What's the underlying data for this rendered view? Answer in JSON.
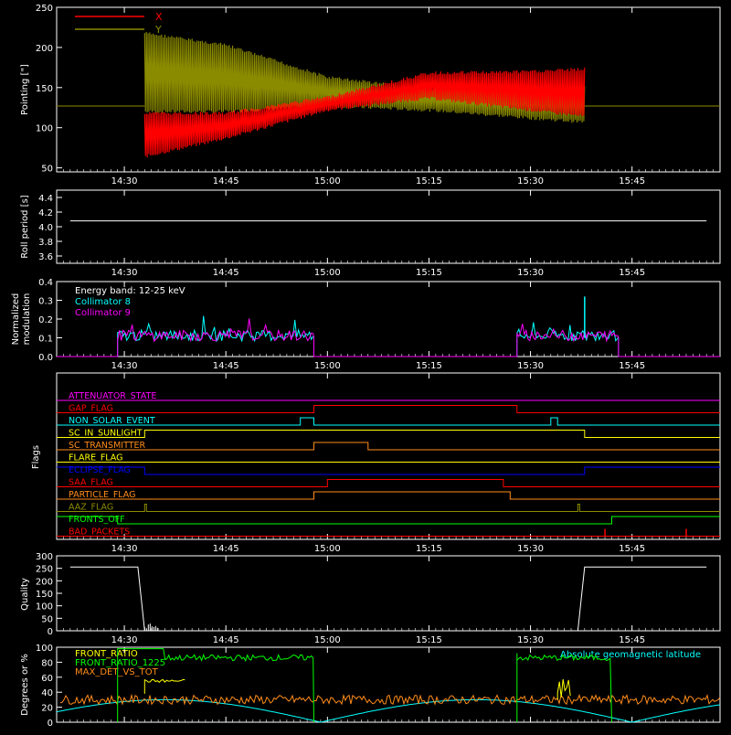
{
  "time_ticks": [
    "14:30",
    "14:45",
    "15:00",
    "15:15",
    "15:30",
    "15:45"
  ],
  "colors": {
    "background": "#000000",
    "axis": "#ffffff",
    "red": "#ff0000",
    "olive": "#8b8b00",
    "cyan": "#00ffff",
    "magenta": "#ff00ff",
    "yellow": "#ffff00",
    "green": "#00ff00",
    "orange": "#ff8c1a",
    "blue": "#0000ff",
    "white": "#ffffff"
  },
  "chart_data": [
    {
      "id": "pointing",
      "type": "line",
      "ylabel": "Pointing [\"]",
      "ylim": [
        45,
        250
      ],
      "yticks": [
        50,
        100,
        150,
        200,
        250
      ],
      "legend": [
        {
          "label": "X",
          "color": "#ff0000"
        },
        {
          "label": "Y",
          "color": "#8b8b00"
        }
      ],
      "series": [
        {
          "name": "X",
          "color": "#ff0000",
          "envelope": [
            {
              "t": "14:33",
              "min": 62,
              "max": 120
            },
            {
              "t": "14:45",
              "min": 85,
              "max": 120
            },
            {
              "t": "15:00",
              "min": 120,
              "max": 140
            },
            {
              "t": "15:15",
              "min": 135,
              "max": 170
            },
            {
              "t": "15:30",
              "min": 120,
              "max": 172
            },
            {
              "t": "15:38",
              "min": 112,
              "max": 175
            }
          ]
        },
        {
          "name": "Y",
          "color": "#8b8b00",
          "envelope": [
            {
              "t": "14:33",
              "min": 118,
              "max": 220
            },
            {
              "t": "14:45",
              "min": 118,
              "max": 205
            },
            {
              "t": "15:00",
              "min": 125,
              "max": 165
            },
            {
              "t": "15:15",
              "min": 120,
              "max": 150
            },
            {
              "t": "15:30",
              "min": 110,
              "max": 152
            },
            {
              "t": "15:38",
              "min": 105,
              "max": 155
            }
          ],
          "baseline": 127
        }
      ]
    },
    {
      "id": "roll",
      "type": "line",
      "ylabel": "Roll period [s]",
      "ylim": [
        3.5,
        4.5
      ],
      "yticks": [
        "3.6",
        "3.8",
        "4.0",
        "4.2",
        "4.4"
      ],
      "series": [
        {
          "name": "",
          "color": "#ffffff",
          "x": [
            "14:22",
            "15:56"
          ],
          "y": [
            4.08,
            4.08
          ]
        }
      ]
    },
    {
      "id": "modulation",
      "type": "line",
      "ylabel": "Normalized modulation",
      "ylim": [
        0,
        0.4
      ],
      "yticks": [
        "0.0",
        "0.1",
        "0.2",
        "0.3",
        "0.4"
      ],
      "annotation": "Energy band: 12-25 keV",
      "series": [
        {
          "name": "Collimator 8",
          "color": "#00ffff",
          "segments": [
            [
              "14:29",
              "14:58"
            ],
            [
              "15:28",
              "15:43"
            ]
          ],
          "level": 0.1,
          "peak": 0.32
        },
        {
          "name": "Collimator 9",
          "color": "#ff00ff",
          "segments": [
            [
              "14:29",
              "14:58"
            ],
            [
              "15:28",
              "15:43"
            ]
          ],
          "level": 0.1,
          "peak": 0.18
        }
      ]
    },
    {
      "id": "flags",
      "type": "line",
      "ylabel": "Flags",
      "series": [
        {
          "name": "ATTENUATOR_STATE",
          "color": "#ff00ff",
          "level": 0,
          "high": []
        },
        {
          "name": "GAP_FLAG",
          "color": "#ff0000",
          "level": 0,
          "high": [
            [
              "14:58",
              "15:28"
            ]
          ]
        },
        {
          "name": "NON_SOLAR_EVENT",
          "color": "#00ffff",
          "level": 0,
          "high": [
            [
              "14:56",
              "14:58"
            ],
            [
              "15:33",
              "15:34"
            ]
          ]
        },
        {
          "name": "SC_IN_SUNLIGHT",
          "color": "#ffff00",
          "level": 0,
          "high": [
            [
              "14:33",
              "15:38"
            ]
          ]
        },
        {
          "name": "SC_TRANSMITTER",
          "color": "#ff8c1a",
          "level": 0,
          "high": [
            [
              "14:58",
              "15:06"
            ]
          ]
        },
        {
          "name": "FLARE_FLAG",
          "color": "#ffff00",
          "level": 0,
          "high": []
        },
        {
          "name": "ECLIPSE_FLAG",
          "color": "#0000ff",
          "level": 1,
          "high": [
            [
              "14:33",
              "15:38"
            ]
          ],
          "inverted": true
        },
        {
          "name": "SAA_FLAG",
          "color": "#ff0000",
          "level": 0,
          "high": [
            [
              "15:00",
              "15:26"
            ]
          ]
        },
        {
          "name": "PARTICLE_FLAG",
          "color": "#ff8c1a",
          "level": 0,
          "high": [
            [
              "14:58",
              "15:27"
            ]
          ]
        },
        {
          "name": "AAZ_FLAG",
          "color": "#8b8b00",
          "level": 0,
          "high": [
            [
              "14:33",
              "14:33"
            ],
            [
              "15:37",
              "15:37"
            ]
          ]
        },
        {
          "name": "FRONTS_OFF",
          "color": "#00ff00",
          "level": 1,
          "high": [
            [
              "14:29",
              "15:42"
            ]
          ],
          "inverted": true
        },
        {
          "name": "BAD_PACKETS",
          "color": "#ff0000",
          "level": 0,
          "spikes": [
            "15:41",
            "15:53"
          ]
        }
      ]
    },
    {
      "id": "quality",
      "type": "line",
      "ylabel": "Quality",
      "ylim": [
        0,
        300
      ],
      "yticks": [
        0,
        50,
        100,
        150,
        200,
        250,
        300
      ],
      "series": [
        {
          "name": "",
          "color": "#ffffff",
          "x": [
            "14:22",
            "14:32",
            "14:33",
            "14:35",
            "15:37",
            "15:38",
            "15:56"
          ],
          "y": [
            255,
            255,
            0,
            0,
            0,
            255,
            255
          ]
        }
      ]
    },
    {
      "id": "geo",
      "type": "line",
      "ylabel": "Degrees or %",
      "ylim": [
        0,
        100
      ],
      "yticks": [
        0,
        20,
        40,
        60,
        80,
        100
      ],
      "series": [
        {
          "name": "FRONT_RATIO",
          "color": "#ffff00",
          "level": 45
        },
        {
          "name": "FRONT_RATIO_1225",
          "color": "#00ff00",
          "level": 88
        },
        {
          "name": "MAX_DET_VS_TOT",
          "color": "#ff8c1a",
          "level": 30
        },
        {
          "name": "Absolute geomagnetic latitude",
          "color": "#00ffff",
          "level": 30
        }
      ]
    }
  ]
}
